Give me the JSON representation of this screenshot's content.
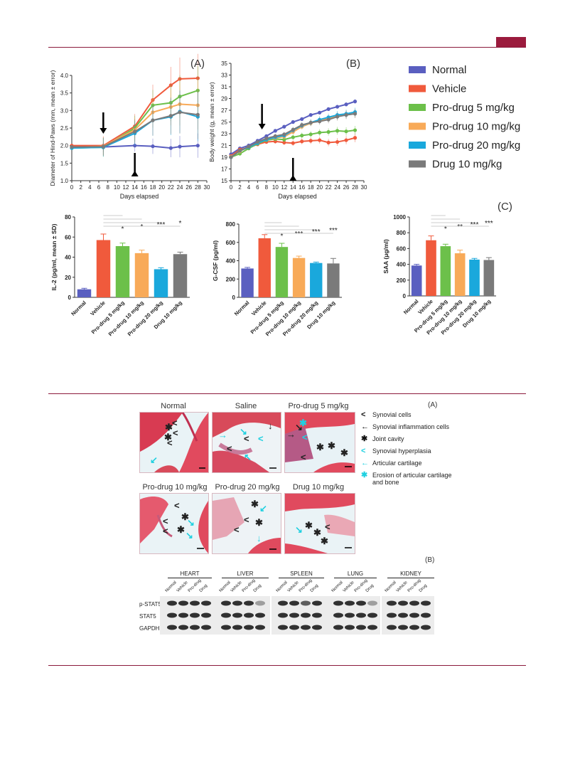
{
  "colors": {
    "normal": "#5a5fc0",
    "vehicle": "#f05a3c",
    "pro5": "#6cc04a",
    "pro10": "#f8aa58",
    "pro20": "#1aa8dc",
    "drug10": "#7a7a7a",
    "rule": "#8b1a3c"
  },
  "figure1": {
    "panel_a_label": "(A)",
    "panel_b_label": "(B)",
    "panel_c_label": "(C)",
    "legend": [
      "Normal",
      "Vehicle",
      "Pro-drug 5 mg/kg",
      "Pro-drug 10 mg/kg",
      "Pro-drug 20 mg/kg",
      "Drug 10 mg/kg"
    ]
  },
  "chart_data": [
    {
      "type": "line",
      "ylabel": "Diameter of Hind-Paws (mm, mean ± error)",
      "xlabel": "Days elapsed",
      "x": [
        0,
        7,
        14,
        18,
        22,
        24,
        28
      ],
      "xticks": [
        0,
        2,
        4,
        6,
        8,
        10,
        12,
        14,
        16,
        18,
        20,
        22,
        24,
        26,
        28,
        30
      ],
      "yticks": [
        "1.0",
        "1.5",
        "2.0",
        "2.5",
        "3.0",
        "3.5",
        "4.0"
      ],
      "xlim": [
        0,
        30
      ],
      "ylim": [
        1.0,
        4.0
      ],
      "arrows_at_day": [
        7,
        14
      ],
      "series": [
        {
          "name": "Normal",
          "values": [
            1.96,
            1.96,
            2.0,
            1.98,
            1.93,
            1.97,
            2.0
          ]
        },
        {
          "name": "Vehicle",
          "values": [
            2.0,
            2.0,
            2.55,
            3.3,
            3.72,
            3.9,
            3.92
          ]
        },
        {
          "name": "Pro-drug 5 mg/kg",
          "values": [
            1.93,
            1.95,
            2.5,
            3.15,
            3.22,
            3.4,
            3.57
          ]
        },
        {
          "name": "Pro-drug 10 mg/kg",
          "values": [
            1.95,
            1.98,
            2.45,
            2.95,
            3.1,
            3.18,
            3.15
          ]
        },
        {
          "name": "Pro-drug 20 mg/kg",
          "values": [
            1.93,
            1.95,
            2.35,
            2.72,
            2.82,
            2.97,
            2.82
          ]
        },
        {
          "name": "Drug 10 mg/kg",
          "values": [
            1.96,
            1.97,
            2.4,
            2.72,
            2.85,
            2.95,
            2.88
          ]
        }
      ]
    },
    {
      "type": "line",
      "ylabel": "Body weight (g, mean ± error)",
      "xlabel": "Days elapsed",
      "x": [
        0,
        2,
        4,
        6,
        8,
        10,
        12,
        14,
        16,
        18,
        20,
        22,
        24,
        26,
        28
      ],
      "xticks": [
        0,
        2,
        4,
        6,
        8,
        10,
        12,
        14,
        16,
        18,
        20,
        22,
        24,
        26,
        28,
        30
      ],
      "yticks": [
        "15",
        "17",
        "19",
        "21",
        "23",
        "25",
        "27",
        "29",
        "31",
        "33",
        "35"
      ],
      "xlim": [
        0,
        30
      ],
      "ylim": [
        15,
        35
      ],
      "arrows_at_day": [
        7,
        14
      ],
      "series": [
        {
          "name": "Normal",
          "values": [
            19.5,
            20.5,
            21.0,
            21.8,
            22.6,
            23.5,
            24.2,
            25.0,
            25.5,
            26.2,
            26.6,
            27.2,
            27.6,
            28.0,
            28.5
          ]
        },
        {
          "name": "Vehicle",
          "values": [
            19.2,
            20.3,
            20.6,
            21.2,
            21.6,
            21.7,
            21.5,
            21.4,
            21.7,
            21.8,
            21.9,
            21.5,
            21.6,
            21.9,
            22.3
          ]
        },
        {
          "name": "Pro-drug 5 mg/kg",
          "values": [
            19.0,
            19.6,
            20.5,
            21.3,
            21.9,
            22.1,
            22.0,
            22.4,
            22.7,
            22.9,
            23.2,
            23.3,
            23.5,
            23.4,
            23.6
          ]
        },
        {
          "name": "Pro-drug 10 mg/kg",
          "values": [
            19.1,
            20.0,
            20.8,
            21.5,
            22.0,
            22.3,
            22.5,
            23.3,
            24.2,
            24.8,
            25.3,
            25.6,
            26.0,
            26.3,
            26.5
          ]
        },
        {
          "name": "Pro-drug 20 mg/kg",
          "values": [
            19.0,
            20.1,
            20.7,
            21.4,
            22.0,
            22.4,
            22.7,
            23.6,
            24.4,
            24.9,
            25.4,
            25.8,
            26.2,
            26.4,
            26.7
          ]
        },
        {
          "name": "Drug 10 mg/kg",
          "values": [
            19.0,
            20.1,
            20.8,
            21.6,
            22.2,
            22.6,
            22.9,
            23.7,
            24.5,
            24.9,
            25.1,
            25.4,
            25.9,
            26.2,
            26.4
          ]
        }
      ]
    },
    {
      "type": "bar",
      "ylabel": "IL-2 (pg/ml, mean ± SD)",
      "categories": [
        "Normal",
        "Vehicle",
        "Pro-drug 5 mg/kg",
        "Pro-drug 10 mg/kg",
        "Pro-drug 20 mg/kg",
        "Drug 10 mg/kg"
      ],
      "values": [
        8,
        57,
        51,
        44,
        28,
        43
      ],
      "errors": [
        1,
        6,
        3,
        3,
        1.5,
        2
      ],
      "yticks": [
        "0",
        "20",
        "40",
        "60",
        "80"
      ],
      "ylim": [
        0,
        80
      ],
      "significance": [
        "",
        "",
        "*",
        "*",
        "***",
        "*"
      ]
    },
    {
      "type": "bar",
      "ylabel": "G-CSF (pg/ml)",
      "categories": [
        "Normal",
        "Vehicle",
        "Pro-drug 5 mg/kg",
        "Pro-drug 10 mg/kg",
        "Pro-drug 20 mg/kg",
        "Drug 10 mg/kg"
      ],
      "values": [
        315,
        645,
        550,
        430,
        375,
        370
      ],
      "errors": [
        12,
        40,
        40,
        20,
        10,
        55
      ],
      "yticks": [
        "0",
        "200",
        "400",
        "600",
        "800"
      ],
      "ylim": [
        0,
        800
      ],
      "significance": [
        "",
        "",
        "*",
        "***",
        "***",
        "***"
      ]
    },
    {
      "type": "bar",
      "ylabel": "SAA (μg/ml)",
      "categories": [
        "Normal",
        "Vehicle",
        "Pro-drug 5 mg/kg",
        "Pro-drug 10 mg/kg",
        "Pro-drug 20 mg/kg",
        "Drug 10 mg/kg"
      ],
      "values": [
        385,
        705,
        630,
        540,
        460,
        455
      ],
      "errors": [
        15,
        55,
        25,
        40,
        15,
        30
      ],
      "yticks": [
        "0",
        "200",
        "400",
        "600",
        "800",
        "1000"
      ],
      "ylim": [
        0,
        1000
      ],
      "significance": [
        "",
        "",
        "*",
        "**",
        "***",
        "***"
      ]
    }
  ],
  "figure2": {
    "panel_a_label": "(A)",
    "panel_b_label": "(B)",
    "hist_titles": [
      "Normal",
      "Saline",
      "Pro-drug 5 mg/kg",
      "Pro-drug 10 mg/kg",
      "Pro-drug 20 mg/kg",
      "Drug 10 mg/kg"
    ],
    "legend": [
      {
        "symbol": "<",
        "color": "#111111",
        "label": "Synovial cells"
      },
      {
        "symbol": "←",
        "color": "#111111",
        "label": "Synovial inflammation cells"
      },
      {
        "symbol": "✱",
        "color": "#111111",
        "label": "Joint cavity"
      },
      {
        "symbol": "<",
        "color": "#1fd0e0",
        "label": "Synovial hyperplasia"
      },
      {
        "symbol": "←",
        "color": "#1fd0e0",
        "label": "Articular cartilage"
      },
      {
        "symbol": "✱",
        "color": "#1fd0e0",
        "label": "Erosion of articular cartilage and bone"
      }
    ],
    "blot": {
      "tissues": [
        "HEART",
        "LIVER",
        "SPLEEN",
        "LUNG",
        "KIDNEY"
      ],
      "lanes": [
        "Normal",
        "Vehicle",
        "Pro-drug",
        "Drug"
      ],
      "proteins": [
        "p-STAT5",
        "STAT5",
        "GAPDH"
      ]
    }
  }
}
